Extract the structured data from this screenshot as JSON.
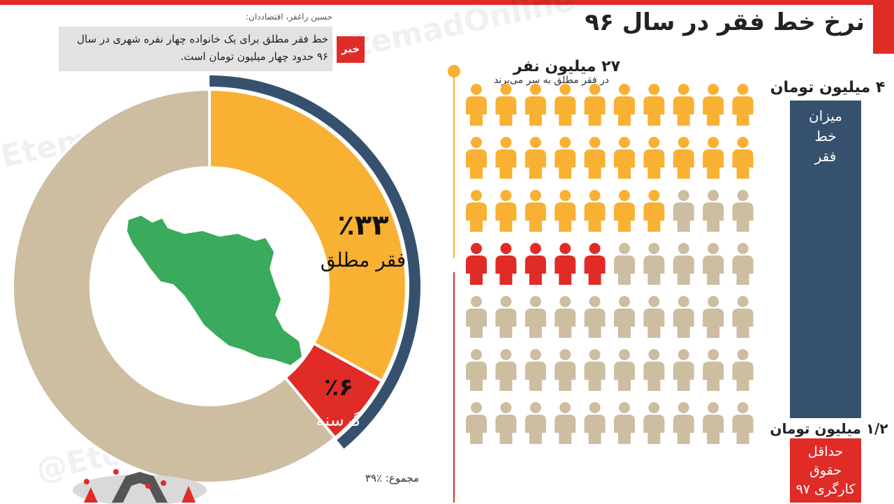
{
  "title": "نرخ خط فقر در سال ۹۶",
  "watermark": "@EtemadOnline",
  "news": {
    "tag": "خبر",
    "author": "حسین راغفر، اقتصاددان:",
    "text": "خط فقر مطلق برای یک خانواده چهار نفره شهری در سال ۹۶ حدود چهار میلیون تومان است."
  },
  "donut": {
    "segments": [
      {
        "pct_label": "٪۳۳",
        "label": "فقر مطلق",
        "value": 33,
        "color": "#f8b133"
      },
      {
        "pct_label": "٪۶",
        "label": "گرسنه",
        "value": 6,
        "color": "#e02b27"
      }
    ],
    "rest_color": "#cdbda1",
    "total_label": "مجموع: ٪۳۹",
    "ring_color": "#36516d",
    "map_color": "#3aaa5c"
  },
  "people": {
    "title": "۲۷ میلیون نفر",
    "subtitle": "در فقر مطلق به سر می‌برند",
    "rows_visible": 7,
    "cols": 10,
    "rows": [
      {
        "yellow": 10,
        "red": 0
      },
      {
        "yellow": 10,
        "red": 0
      },
      {
        "yellow": 7,
        "red": 0
      },
      {
        "yellow": 0,
        "red": 5
      },
      {
        "yellow": 0,
        "red": 0
      },
      {
        "yellow": 0,
        "red": 0
      },
      {
        "yellow": 0,
        "red": 0
      }
    ],
    "colors": {
      "yellow": "#f8b133",
      "red": "#e02b27",
      "gray": "#cdbda1",
      "line": "#f8b133",
      "dot": "#f8b133"
    }
  },
  "bars": {
    "top_value": "۴ میلیون تومان",
    "top_text": [
      "میزان",
      "خط",
      "فقر"
    ],
    "bottom_value": "۱/۲ میلیون تومان",
    "bottom_text": [
      "حداقل",
      "حقوق",
      "کارگری ۹۷"
    ],
    "colors": {
      "top": "#36516d",
      "bottom": "#e02b27"
    }
  }
}
